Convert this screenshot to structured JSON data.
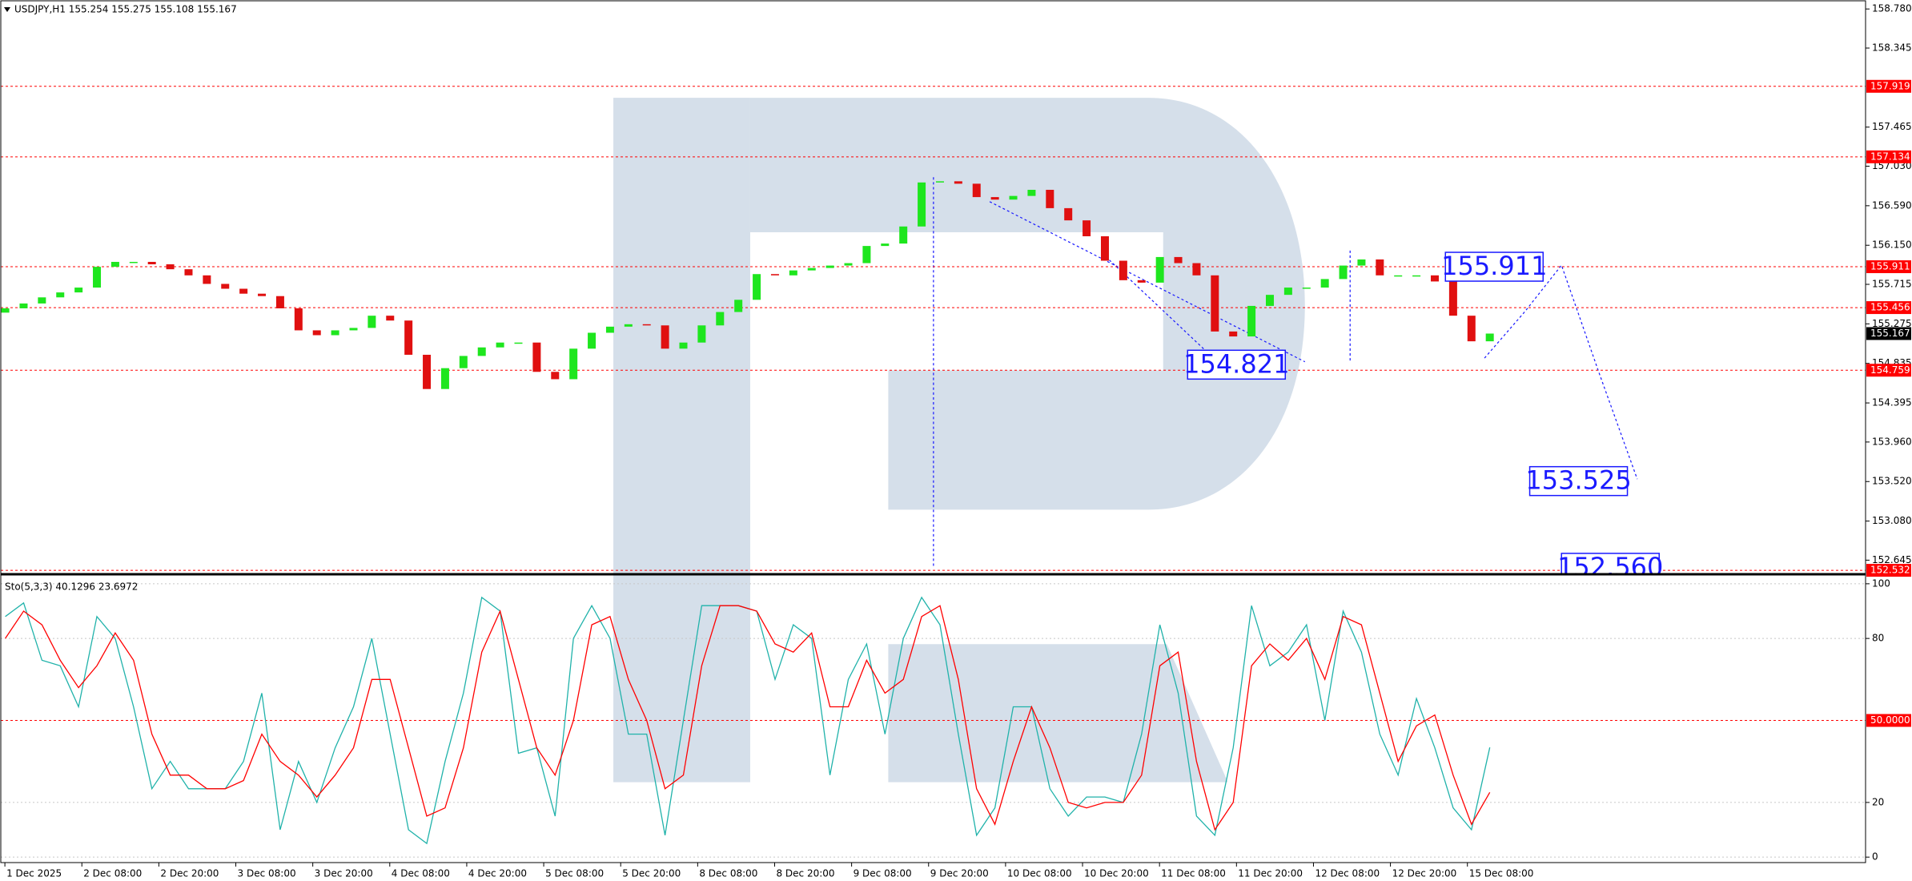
{
  "chart_data": [
    {
      "type": "candlestick",
      "title": "USDJPY,H1  155.254 155.275 155.108 155.167",
      "up_color": "#1ee61e",
      "down_color": "#e01010",
      "open": [
        155.4,
        155.448,
        155.502,
        155.57,
        155.625,
        155.679,
        155.91,
        155.965,
        155.965,
        155.938,
        155.883,
        155.815,
        155.72,
        155.666,
        155.611,
        155.584,
        155.448,
        155.203,
        155.149,
        155.203,
        155.23,
        155.366,
        155.312,
        154.931,
        154.55,
        154.782,
        154.918,
        155.013,
        155.067,
        155.067,
        154.741,
        154.659,
        154.999,
        155.176,
        155.244,
        155.271,
        155.258,
        154.999,
        155.067,
        155.258,
        155.407,
        155.543,
        155.829,
        155.815,
        155.87,
        155.897,
        155.924,
        155.951,
        156.142,
        156.169,
        156.359,
        156.849,
        156.862,
        156.835,
        156.686,
        156.658,
        156.699,
        156.767,
        156.563,
        156.427,
        156.25,
        155.978,
        155.761,
        155.734,
        156.019,
        155.951,
        155.815,
        155.19,
        155.135,
        155.475,
        155.598,
        155.679,
        155.679,
        155.774,
        155.924,
        155.992,
        155.815,
        155.815,
        155.815,
        155.747,
        155.366,
        155.081
      ],
      "close": [
        155.448,
        155.502,
        155.57,
        155.625,
        155.679,
        155.91,
        155.965,
        155.965,
        155.938,
        155.883,
        155.815,
        155.72,
        155.666,
        155.611,
        155.584,
        155.448,
        155.203,
        155.149,
        155.203,
        155.23,
        155.366,
        155.312,
        154.931,
        154.55,
        154.782,
        154.918,
        155.013,
        155.067,
        155.067,
        154.741,
        154.659,
        154.999,
        155.176,
        155.244,
        155.271,
        155.258,
        154.999,
        155.067,
        155.258,
        155.407,
        155.543,
        155.829,
        155.815,
        155.87,
        155.897,
        155.924,
        155.951,
        156.142,
        156.169,
        156.359,
        156.849,
        156.862,
        156.835,
        156.686,
        156.658,
        156.699,
        156.767,
        156.563,
        156.427,
        156.25,
        155.978,
        155.761,
        155.734,
        156.019,
        155.951,
        155.815,
        155.19,
        155.135,
        155.475,
        155.598,
        155.679,
        155.679,
        155.774,
        155.924,
        155.992,
        155.815,
        155.815,
        155.815,
        155.747,
        155.366,
        155.081,
        155.167
      ],
      "ylim": [
        152.497,
        158.862
      ],
      "yticks": [
        {
          "value": 158.78,
          "label": "158.780"
        },
        158.345,
        157.465,
        {
          "value": 157.03,
          "label": "157.030"
        },
        {
          "value": 156.59,
          "label": "156.590"
        },
        {
          "value": 156.15,
          "label": "156.150"
        },
        155.715,
        155.275,
        154.835,
        154.395,
        {
          "value": 153.96,
          "label": "153.960"
        },
        {
          "value": 153.52,
          "label": "153.520"
        },
        {
          "value": 153.08,
          "label": "153.080"
        },
        152.645
      ],
      "levels": [
        157.919,
        157.134,
        155.911,
        155.456,
        154.759,
        152.532
      ],
      "level_color": "#ff0000",
      "last_price": 155.167,
      "forecast_labels": [
        155.911,
        154.821,
        153.525,
        {
          "value": 152.56,
          "label": "152.560"
        }
      ],
      "forecast_color": "#1a1aff"
    },
    {
      "type": "line",
      "title": "Sto(5,3,3) 40.1296 23.6972",
      "series": [
        {
          "color": "#20b2aa",
          "values": [
            88,
            93,
            72,
            70,
            55,
            88,
            80,
            55,
            25,
            35,
            25,
            25,
            25,
            35,
            60,
            10,
            35,
            20,
            40,
            55,
            80,
            45,
            10,
            5,
            35,
            60,
            95,
            90,
            38,
            40,
            15,
            80,
            92,
            80,
            45,
            45,
            8,
            50,
            92,
            92,
            92,
            90,
            65,
            85,
            80,
            30,
            65,
            78,
            45,
            80,
            95,
            85,
            45,
            8,
            18,
            55,
            55,
            25,
            15,
            22,
            22,
            20,
            45,
            85,
            60,
            15,
            8,
            40,
            92,
            70,
            75,
            85,
            50,
            90,
            75,
            45,
            30,
            58,
            40,
            18,
            10,
            40.1296
          ]
        },
        {
          "color": "#ff0000",
          "values": [
            80,
            90,
            85,
            72,
            62,
            70,
            82,
            72,
            45,
            30,
            30,
            25,
            25,
            28,
            45,
            35,
            30,
            22,
            30,
            40,
            65,
            65,
            40,
            15,
            18,
            40,
            75,
            90,
            65,
            40,
            30,
            50,
            85,
            88,
            65,
            50,
            25,
            30,
            70,
            92,
            92,
            90,
            78,
            75,
            82,
            55,
            55,
            72,
            60,
            65,
            88,
            92,
            65,
            25,
            12,
            35,
            55,
            40,
            20,
            18,
            20,
            20,
            30,
            70,
            75,
            35,
            10,
            20,
            70,
            78,
            72,
            80,
            65,
            88,
            85,
            60,
            35,
            48,
            52,
            30,
            12,
            23.6972
          ]
        }
      ],
      "ylim": [
        -2,
        102.6
      ],
      "yticks": [
        0,
        20,
        80,
        100
      ],
      "grid": true,
      "levels": [
        {
          "value": 50,
          "label": "50.0000"
        }
      ],
      "level_color": "#ff0000",
      "x_axis_labels": [
        "1 Dec 2025",
        "2 Dec 08:00",
        "2 Dec 20:00",
        "3 Dec 08:00",
        "3 Dec 20:00",
        "4 Dec 08:00",
        "4 Dec 20:00",
        "5 Dec 08:00",
        "5 Dec 20:00",
        "8 Dec 08:00",
        "8 Dec 20:00",
        "9 Dec 08:00",
        "9 Dec 20:00",
        "10 Dec 08:00",
        "10 Dec 20:00",
        "11 Dec 08:00",
        "11 Dec 20:00",
        "12 Dec 08:00",
        "12 Dec 20:00",
        "15 Dec 08:00"
      ]
    }
  ]
}
